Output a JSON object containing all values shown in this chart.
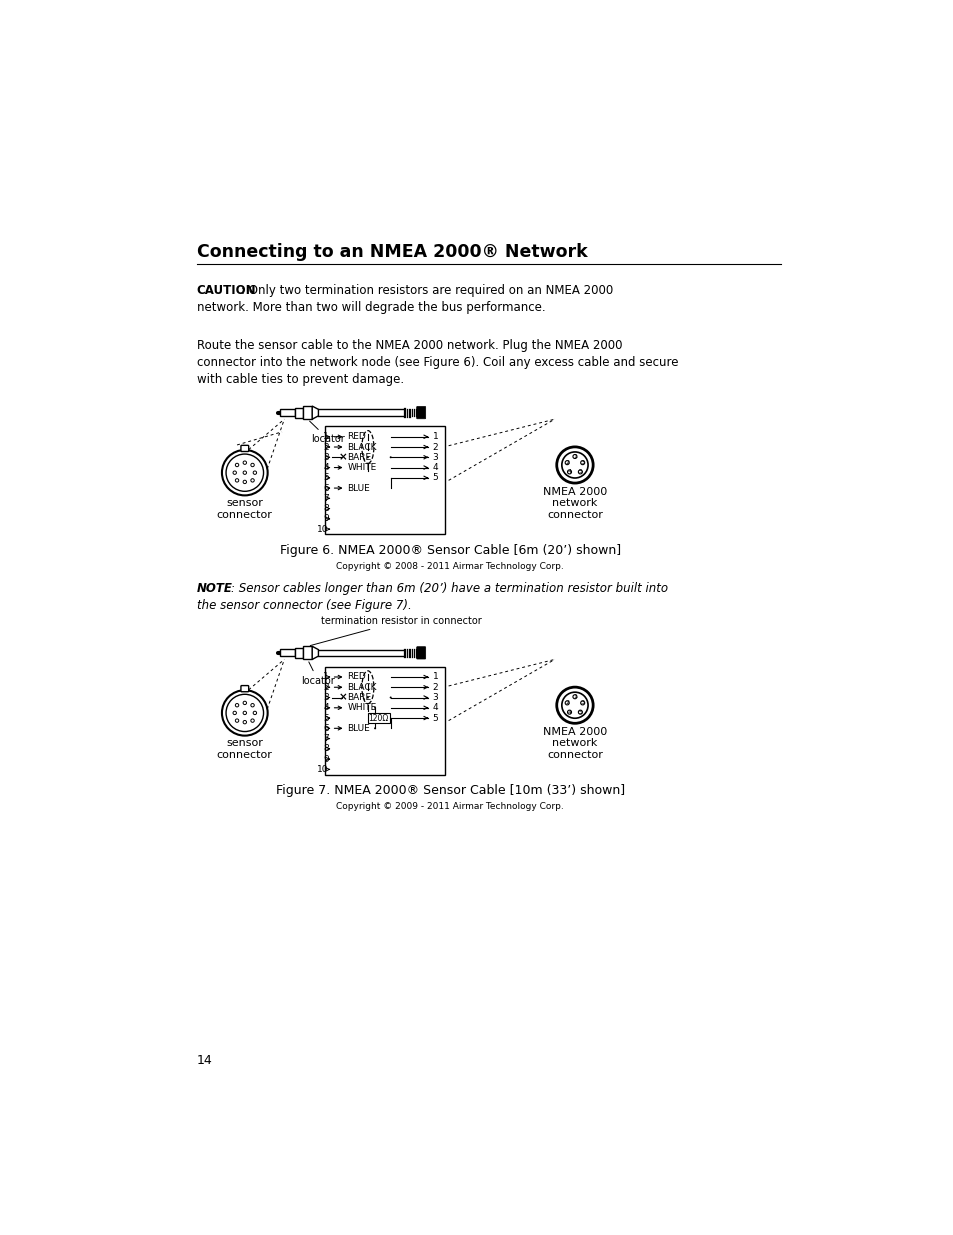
{
  "bg_color": "#ffffff",
  "page_width": 9.54,
  "page_height": 12.35,
  "title": "Connecting to an NMEA 2000® Network",
  "caution_bold": "CAUTION",
  "caution_line1": ": Only two termination resistors are required on an NMEA 2000",
  "caution_line2": "network. More than two will degrade the bus performance.",
  "body_line1": "Route the sensor cable to the NMEA 2000 network. Plug the NMEA 2000",
  "body_line2": "connector into the network node (see Figure 6). Coil any excess cable and secure",
  "body_line3": "with cable ties to prevent damage.",
  "fig6_caption": "Figure 6. NMEA 2000® Sensor Cable [6m (20’) shown]",
  "fig6_copyright": "Copyright © 2008 - 2011 Airmar Technology Corp.",
  "note_bold": "NOTE",
  "note_italic1": ": Sensor cables longer than 6m (20’) have a termination resistor built into",
  "note_italic2": "the sensor connector (see Figure 7).",
  "fig7_caption": "Figure 7. NMEA 2000® Sensor Cable [10m (33’) shown]",
  "fig7_copyright": "Copyright © 2009 - 2011 Airmar Technology Corp.",
  "page_number": "14",
  "term_resistor_label": "termination resistor in connector",
  "locator_label": "locator",
  "sensor_connector_label": "sensor\nconnector",
  "nmea_connector_label": "NMEA 2000\nnetwork\nconnector"
}
